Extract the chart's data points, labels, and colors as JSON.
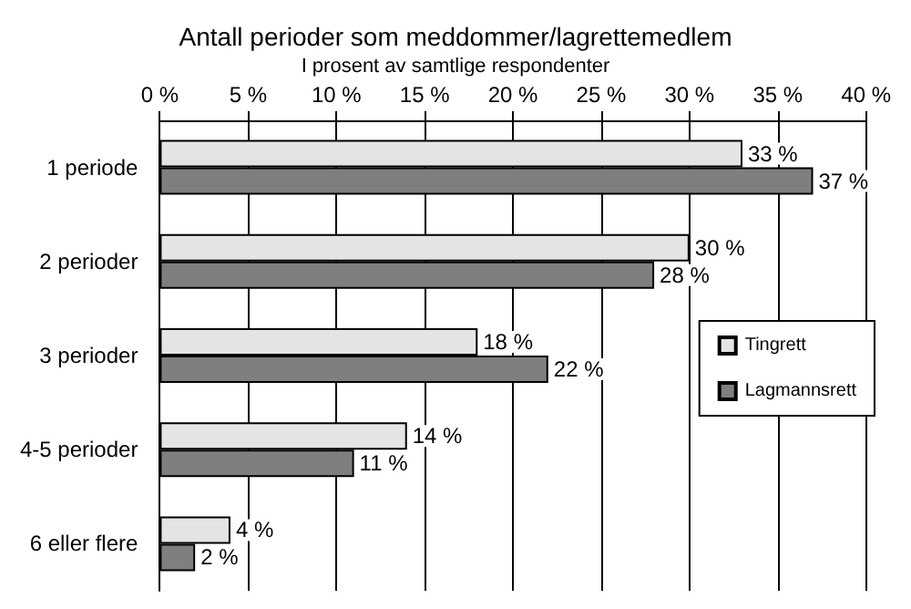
{
  "chart_data": {
    "type": "bar",
    "orientation": "horizontal",
    "title": "Antall perioder som meddommer/lagrettemedlem",
    "subtitle": "I prosent av samtlige respondenter",
    "categories": [
      "1 periode",
      "2 perioder",
      "3 perioder",
      "4-5 perioder",
      "6 eller flere"
    ],
    "series": [
      {
        "name": "Tingrett",
        "color": "#e4e4e4",
        "values": [
          33,
          30,
          18,
          14,
          4
        ],
        "value_labels": [
          "33 %",
          "30 %",
          "18 %",
          "14 %",
          "4 %"
        ]
      },
      {
        "name": "Lagmannsrett",
        "color": "#7f7f7f",
        "values": [
          37,
          28,
          22,
          11,
          2
        ],
        "value_labels": [
          "37 %",
          "28 %",
          "22 %",
          "11 %",
          "2 %"
        ]
      }
    ],
    "xlim": [
      0,
      40
    ],
    "xticks": [
      {
        "value": 0,
        "label": "0 %"
      },
      {
        "value": 5,
        "label": "5 %"
      },
      {
        "value": 10,
        "label": "10 %"
      },
      {
        "value": 15,
        "label": "15 %"
      },
      {
        "value": 20,
        "label": "20 %"
      },
      {
        "value": 25,
        "label": "25 %"
      },
      {
        "value": 30,
        "label": "30 %"
      },
      {
        "value": 35,
        "label": "35 %"
      },
      {
        "value": 40,
        "label": "40 %"
      }
    ],
    "grid": true,
    "legend": "right"
  }
}
